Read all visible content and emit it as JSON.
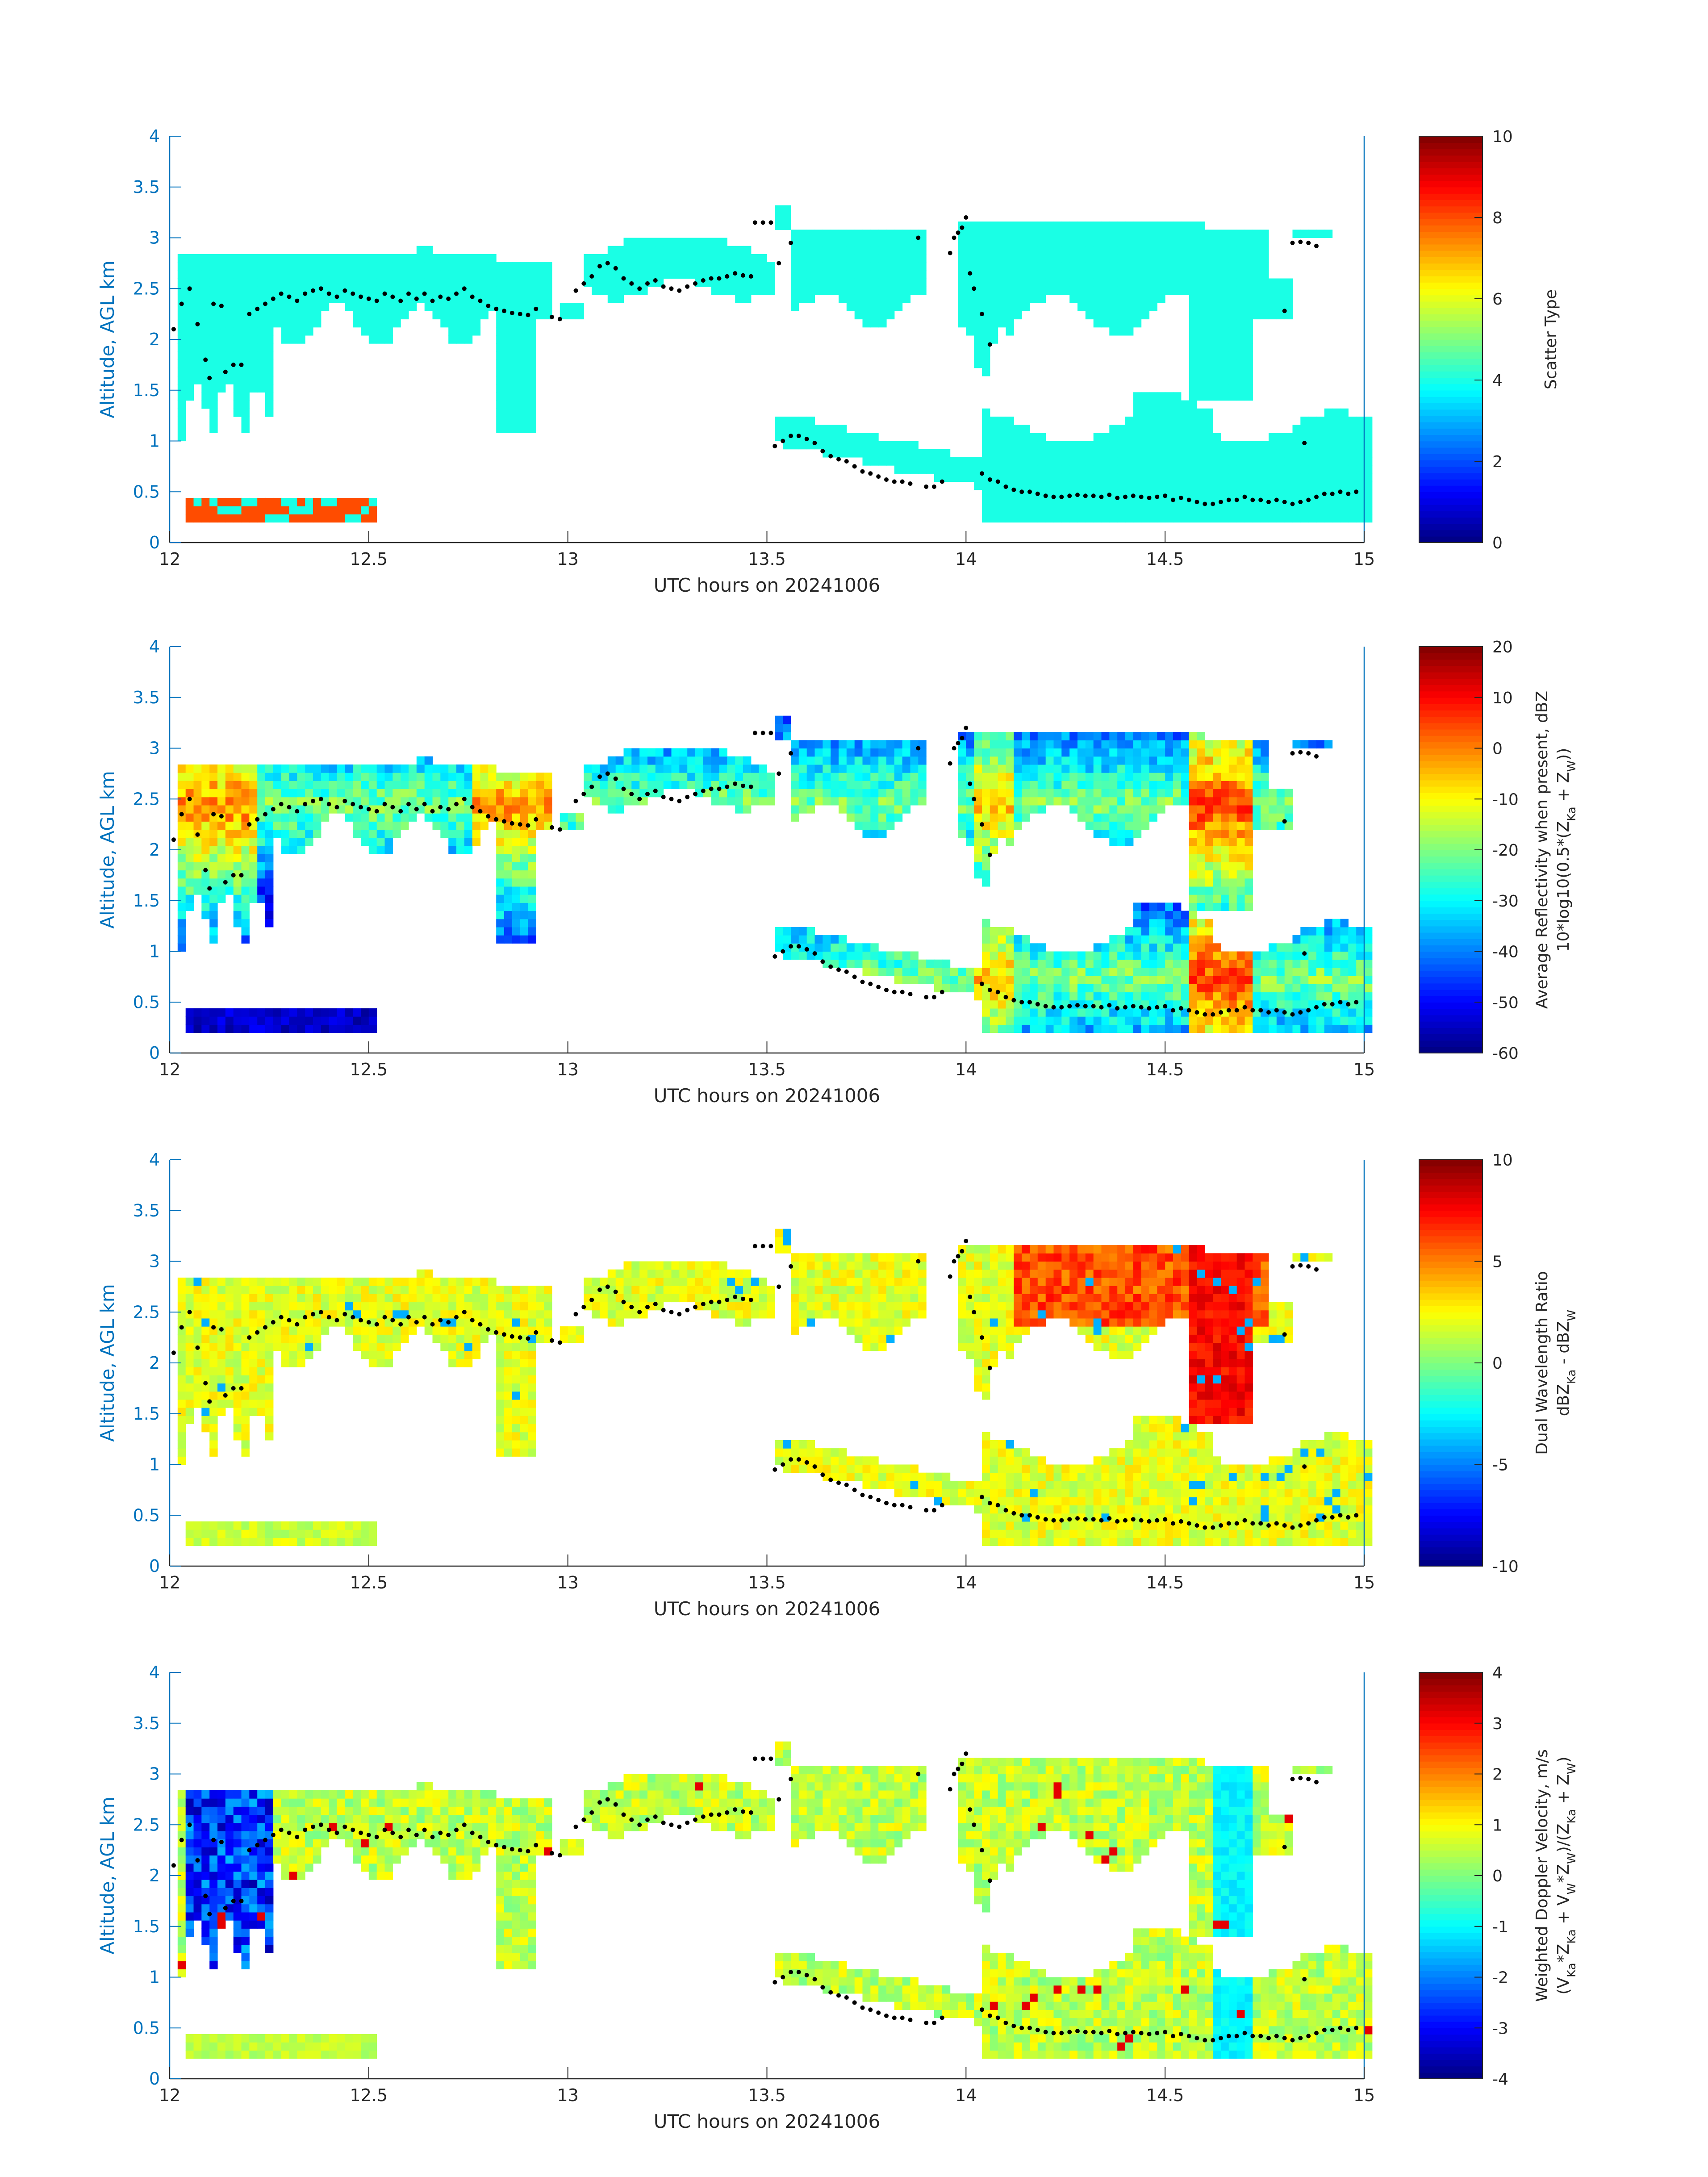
{
  "figure": {
    "x_label": "UTC hours on 20241006",
    "y_label": "Altitude, AGL km",
    "x_ticks": [
      "12",
      "12.5",
      "13",
      "13.5",
      "14",
      "14.5",
      "15"
    ],
    "y_ticks": [
      "0",
      "0.5",
      "1",
      "1.5",
      "2",
      "2.5",
      "3",
      "3.5",
      "4"
    ]
  },
  "colors": {
    "axis": "#262626",
    "y_axis": "#0072bd",
    "points": "#000000"
  },
  "chart_data": [
    {
      "type": "heatmap",
      "xlabel": "UTC hours on 20241006",
      "ylabel": "Altitude, AGL km",
      "xlim": [
        12,
        15
      ],
      "ylim": [
        0,
        4
      ],
      "colorbar_label": "Scatter Type",
      "colorbar_label_parts": [
        "Scatter Type"
      ],
      "colorbar_ticks": [
        "0",
        "2",
        "4",
        "6",
        "8",
        "10"
      ],
      "clim": [
        0,
        10
      ],
      "colormap": "jet",
      "dominant_value": 4,
      "secondary_value": 8
    },
    {
      "type": "heatmap",
      "xlabel": "UTC hours on 20241006",
      "ylabel": "Altitude, AGL km",
      "xlim": [
        12,
        15
      ],
      "ylim": [
        0,
        4
      ],
      "colorbar_label": "Average Reflectivity when present, dBZ | 10*log10(0.5*(Z Ka + Z W))",
      "colorbar_label_parts": [
        "Average Reflectivity when present, dBZ",
        "10*log10(0.5*(Z",
        "Ka",
        " + Z",
        "W",
        "))"
      ],
      "colorbar_ticks": [
        "20",
        "10",
        "0",
        "-10",
        "-20",
        "-30",
        "-40",
        "-50",
        "-60"
      ],
      "clim": [
        -60,
        20
      ],
      "colormap": "jet"
    },
    {
      "type": "heatmap",
      "xlabel": "UTC hours on 20241006",
      "ylabel": "Altitude, AGL km",
      "xlim": [
        12,
        15
      ],
      "ylim": [
        0,
        4
      ],
      "colorbar_label": "Dual Wavelength Ratio | dBZ Ka - dBZ W",
      "colorbar_label_parts": [
        "Dual Wavelength Ratio",
        "dBZ",
        "Ka",
        " - dBZ",
        "W"
      ],
      "colorbar_ticks": [
        "10",
        "5",
        "0",
        "-5",
        "-10"
      ],
      "clim": [
        -10,
        10
      ],
      "colormap": "jet"
    },
    {
      "type": "heatmap",
      "xlabel": "UTC hours on 20241006",
      "ylabel": "Altitude, AGL km",
      "xlim": [
        12,
        15
      ],
      "ylim": [
        0,
        4
      ],
      "colorbar_label": "Weighted Doppler Velocity, m/s | (V Ka *Z Ka + V W *Z W )/(Z Ka + Z W )",
      "colorbar_label_parts": [
        "Weighted Doppler Velocity, m/s",
        "(V",
        "Ka",
        "*Z",
        "Ka",
        " + V",
        "W",
        "*Z",
        "W",
        ")/(Z",
        "Ka",
        " + Z",
        "W",
        ")"
      ],
      "colorbar_ticks": [
        "4",
        "3",
        "2",
        "1",
        "0",
        "-1",
        "-2",
        "-3",
        "-4"
      ],
      "clim": [
        -4,
        4
      ],
      "colormap": "jet"
    }
  ],
  "cloud_base_points": [
    [
      12.01,
      2.1
    ],
    [
      12.03,
      2.35
    ],
    [
      12.05,
      2.5
    ],
    [
      12.07,
      2.15
    ],
    [
      12.09,
      1.8
    ],
    [
      12.1,
      1.62
    ],
    [
      12.11,
      2.35
    ],
    [
      12.13,
      2.33
    ],
    [
      12.14,
      1.68
    ],
    [
      12.16,
      1.75
    ],
    [
      12.18,
      1.75
    ],
    [
      12.2,
      2.25
    ],
    [
      12.22,
      2.3
    ],
    [
      12.24,
      2.35
    ],
    [
      12.26,
      2.4
    ],
    [
      12.28,
      2.45
    ],
    [
      12.3,
      2.42
    ],
    [
      12.32,
      2.38
    ],
    [
      12.34,
      2.45
    ],
    [
      12.36,
      2.48
    ],
    [
      12.38,
      2.5
    ],
    [
      12.4,
      2.45
    ],
    [
      12.42,
      2.42
    ],
    [
      12.44,
      2.48
    ],
    [
      12.46,
      2.45
    ],
    [
      12.48,
      2.42
    ],
    [
      12.5,
      2.4
    ],
    [
      12.52,
      2.38
    ],
    [
      12.54,
      2.45
    ],
    [
      12.56,
      2.42
    ],
    [
      12.58,
      2.38
    ],
    [
      12.6,
      2.45
    ],
    [
      12.62,
      2.4
    ],
    [
      12.64,
      2.45
    ],
    [
      12.66,
      2.38
    ],
    [
      12.68,
      2.42
    ],
    [
      12.7,
      2.4
    ],
    [
      12.72,
      2.45
    ],
    [
      12.74,
      2.5
    ],
    [
      12.76,
      2.42
    ],
    [
      12.78,
      2.38
    ],
    [
      12.8,
      2.33
    ],
    [
      12.82,
      2.3
    ],
    [
      12.84,
      2.28
    ],
    [
      12.86,
      2.26
    ],
    [
      12.88,
      2.25
    ],
    [
      12.9,
      2.24
    ],
    [
      12.92,
      2.3
    ],
    [
      12.96,
      2.22
    ],
    [
      12.98,
      2.2
    ],
    [
      13.02,
      2.48
    ],
    [
      13.04,
      2.55
    ],
    [
      13.06,
      2.62
    ],
    [
      13.08,
      2.72
    ],
    [
      13.1,
      2.75
    ],
    [
      13.12,
      2.7
    ],
    [
      13.14,
      2.6
    ],
    [
      13.16,
      2.55
    ],
    [
      13.18,
      2.5
    ],
    [
      13.2,
      2.55
    ],
    [
      13.22,
      2.58
    ],
    [
      13.24,
      2.52
    ],
    [
      13.26,
      2.5
    ],
    [
      13.28,
      2.48
    ],
    [
      13.3,
      2.52
    ],
    [
      13.32,
      2.55
    ],
    [
      13.34,
      2.58
    ],
    [
      13.36,
      2.6
    ],
    [
      13.38,
      2.6
    ],
    [
      13.4,
      2.62
    ],
    [
      13.42,
      2.65
    ],
    [
      13.44,
      2.63
    ],
    [
      13.46,
      2.62
    ],
    [
      13.47,
      3.15
    ],
    [
      13.49,
      3.15
    ],
    [
      13.51,
      3.15
    ],
    [
      13.53,
      2.75
    ],
    [
      13.56,
      2.95
    ],
    [
      13.52,
      0.95
    ],
    [
      13.54,
      1.0
    ],
    [
      13.56,
      1.05
    ],
    [
      13.58,
      1.05
    ],
    [
      13.6,
      1.02
    ],
    [
      13.62,
      0.98
    ],
    [
      13.64,
      0.9
    ],
    [
      13.66,
      0.85
    ],
    [
      13.68,
      0.82
    ],
    [
      13.7,
      0.8
    ],
    [
      13.72,
      0.75
    ],
    [
      13.74,
      0.7
    ],
    [
      13.76,
      0.68
    ],
    [
      13.78,
      0.65
    ],
    [
      13.8,
      0.62
    ],
    [
      13.82,
      0.6
    ],
    [
      13.84,
      0.6
    ],
    [
      13.86,
      0.58
    ],
    [
      13.88,
      3.0
    ],
    [
      13.9,
      0.55
    ],
    [
      13.92,
      0.55
    ],
    [
      13.94,
      0.6
    ],
    [
      13.96,
      2.85
    ],
    [
      13.97,
      3.0
    ],
    [
      13.98,
      3.05
    ],
    [
      13.99,
      3.1
    ],
    [
      14.0,
      3.2
    ],
    [
      14.01,
      2.65
    ],
    [
      14.02,
      2.5
    ],
    [
      14.04,
      2.25
    ],
    [
      14.06,
      1.95
    ],
    [
      14.04,
      0.68
    ],
    [
      14.06,
      0.62
    ],
    [
      14.08,
      0.6
    ],
    [
      14.1,
      0.55
    ],
    [
      14.12,
      0.52
    ],
    [
      14.14,
      0.5
    ],
    [
      14.16,
      0.5
    ],
    [
      14.18,
      0.48
    ],
    [
      14.2,
      0.46
    ],
    [
      14.22,
      0.45
    ],
    [
      14.24,
      0.45
    ],
    [
      14.26,
      0.46
    ],
    [
      14.28,
      0.47
    ],
    [
      14.3,
      0.46
    ],
    [
      14.32,
      0.46
    ],
    [
      14.34,
      0.45
    ],
    [
      14.36,
      0.47
    ],
    [
      14.38,
      0.44
    ],
    [
      14.4,
      0.45
    ],
    [
      14.42,
      0.46
    ],
    [
      14.44,
      0.45
    ],
    [
      14.46,
      0.44
    ],
    [
      14.48,
      0.45
    ],
    [
      14.5,
      0.46
    ],
    [
      14.52,
      0.42
    ],
    [
      14.54,
      0.44
    ],
    [
      14.56,
      0.42
    ],
    [
      14.58,
      0.4
    ],
    [
      14.6,
      0.38
    ],
    [
      14.62,
      0.38
    ],
    [
      14.64,
      0.4
    ],
    [
      14.66,
      0.42
    ],
    [
      14.68,
      0.42
    ],
    [
      14.7,
      0.45
    ],
    [
      14.72,
      0.42
    ],
    [
      14.74,
      0.42
    ],
    [
      14.76,
      0.4
    ],
    [
      14.78,
      0.42
    ],
    [
      14.8,
      0.4
    ],
    [
      14.82,
      0.38
    ],
    [
      14.84,
      0.4
    ],
    [
      14.86,
      0.42
    ],
    [
      14.88,
      0.45
    ],
    [
      14.9,
      0.48
    ],
    [
      14.92,
      0.48
    ],
    [
      14.94,
      0.5
    ],
    [
      14.96,
      0.48
    ],
    [
      14.98,
      0.5
    ],
    [
      14.8,
      2.28
    ],
    [
      14.82,
      2.95
    ],
    [
      14.84,
      2.96
    ],
    [
      14.86,
      2.95
    ],
    [
      14.88,
      2.92
    ],
    [
      14.85,
      0.98
    ]
  ]
}
